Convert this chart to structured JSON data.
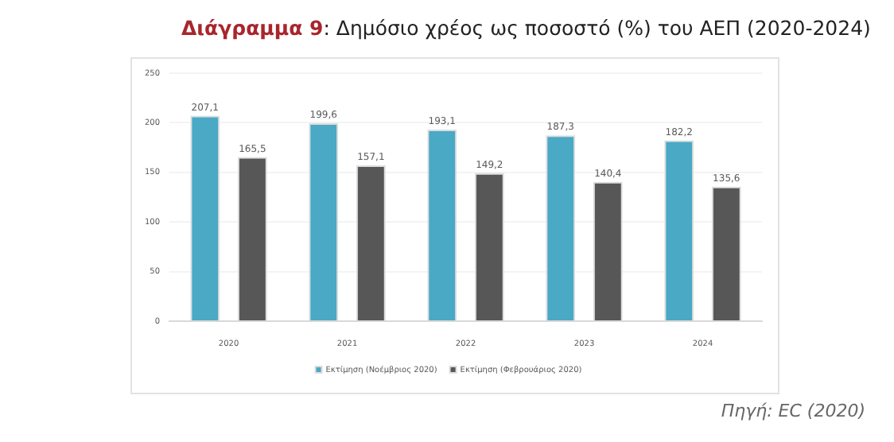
{
  "chart_data": {
    "type": "bar",
    "title": "Διάγραμμα 9: Δημόσιο χρέος ως ποσοστό (%) του ΑΕΠ (2020-2024)",
    "categories": [
      "2020",
      "2021",
      "2022",
      "2023",
      "2024"
    ],
    "series": [
      {
        "name": "Εκτίμηση (Νοέμβριος 2020)",
        "color": "#4aa9c4",
        "values": [
          207.1,
          199.6,
          193.1,
          187.3,
          182.2
        ],
        "value_labels": [
          "207,1",
          "199,6",
          "193,1",
          "187,3",
          "182,2"
        ]
      },
      {
        "name": "Εκτίμηση (Φεβρουάριος 2020)",
        "color": "#575757",
        "values": [
          165.5,
          157.1,
          149.2,
          140.4,
          135.6
        ],
        "value_labels": [
          "165,5",
          "157,1",
          "149,2",
          "140,4",
          "135,6"
        ]
      }
    ],
    "ylim": [
      0,
      250
    ],
    "yticks": [
      0,
      50,
      100,
      150,
      200,
      250
    ],
    "grid": "y",
    "legend": "bottom",
    "annotations": [
      "Πηγή: EC (2020)"
    ]
  }
}
